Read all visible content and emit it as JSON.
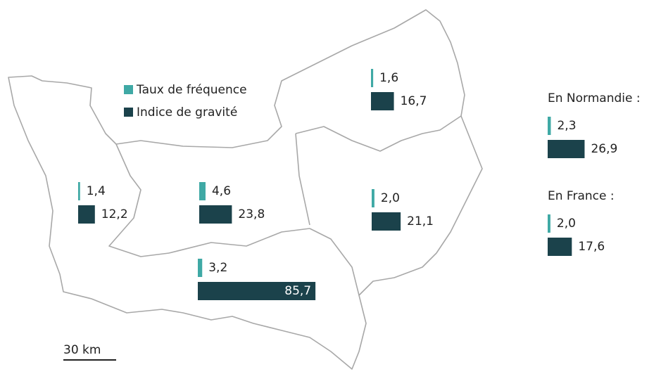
{
  "legend": {
    "items": [
      {
        "label": "Taux de fréquence",
        "color": "#3fa9a5"
      },
      {
        "label": "Indice de gravité",
        "color": "#1b424b"
      }
    ]
  },
  "regions": [
    {
      "values": [
        1.4,
        12.2
      ],
      "value_labels": [
        "1,4",
        "12,2"
      ]
    },
    {
      "values": [
        4.6,
        23.8
      ],
      "value_labels": [
        "4,6",
        "23,8"
      ]
    },
    {
      "values": [
        3.2,
        85.7
      ],
      "value_labels": [
        "3,2",
        "85,7"
      ]
    },
    {
      "values": [
        2.0,
        21.1
      ],
      "value_labels": [
        "2,0",
        "21,1"
      ]
    },
    {
      "values": [
        1.6,
        16.7
      ],
      "value_labels": [
        "1,6",
        "16,7"
      ]
    }
  ],
  "summary": [
    {
      "title": "En Normandie :",
      "values": [
        2.3,
        26.9
      ],
      "value_labels": [
        "2,3",
        "26,9"
      ]
    },
    {
      "title": "En France :",
      "values": [
        2.0,
        17.6
      ],
      "value_labels": [
        "2,0",
        "17,6"
      ]
    }
  ],
  "scale": {
    "label": "30 km"
  }
}
